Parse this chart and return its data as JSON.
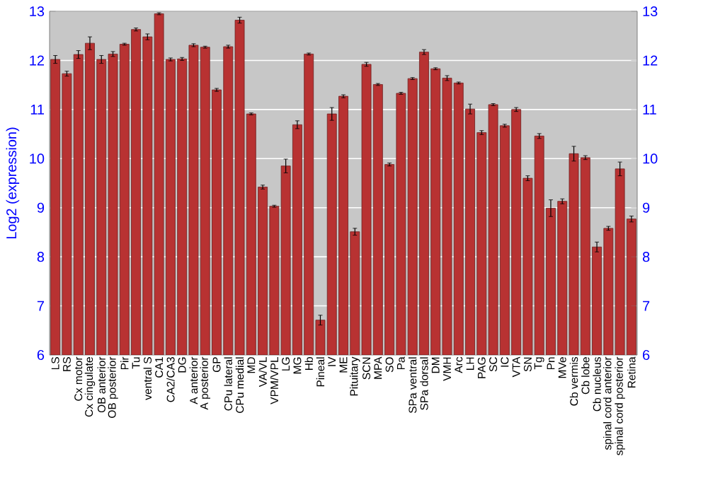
{
  "chart_data": {
    "type": "bar",
    "ylabel": "Log2 (expression)",
    "categories": [
      "LS",
      "RS",
      "Cx motor",
      "Cx cingulate",
      "OB anterior",
      "OB posterior",
      "Pir",
      "Tu",
      "ventral S",
      "CA1",
      "CA2/CA3",
      "DG",
      "A anterior",
      "A posterior",
      "GP",
      "CPu lateral",
      "CPu medial",
      "MD",
      "VA/VL",
      "VPM/VPL",
      "LG",
      "MG",
      "Hb",
      "Pineal",
      "IV",
      "ME",
      "Pituitary",
      "SCN",
      "MPA",
      "SO",
      "Pa",
      "SPa ventral",
      "SPa dorsal",
      "DM",
      "VMH",
      "Arc",
      "LH",
      "PAG",
      "SC",
      "IC",
      "VTA",
      "SN",
      "Tg",
      "Pn",
      "MVe",
      "Cb vermis",
      "Cb lobe",
      "Cb nucleus",
      "spinal cord anterior",
      "spinal cord posterior",
      "Retina"
    ],
    "series": [
      {
        "color": "#b83232",
        "values": [
          12.02,
          11.73,
          12.12,
          12.35,
          12.02,
          12.13,
          12.33,
          12.63,
          12.48,
          12.95,
          12.02,
          12.03,
          12.31,
          12.27,
          11.4,
          12.28,
          12.82,
          10.91,
          9.42,
          9.03,
          9.85,
          10.69,
          12.13,
          6.71,
          10.91,
          11.27,
          8.51,
          11.92,
          11.51,
          9.88,
          11.33,
          11.63,
          12.17,
          11.83,
          11.64,
          11.54,
          11.01,
          10.53,
          11.1,
          10.67,
          11.0,
          9.6,
          10.46,
          8.99,
          9.13,
          10.1,
          10.02,
          8.2,
          8.58,
          9.79,
          8.77
        ],
        "errors": [
          0.08,
          0.05,
          0.08,
          0.13,
          0.08,
          0.05,
          0.02,
          0.03,
          0.06,
          0.02,
          0.03,
          0.03,
          0.03,
          0.02,
          0.03,
          0.03,
          0.06,
          0.02,
          0.04,
          0.02,
          0.14,
          0.08,
          0.02,
          0.1,
          0.13,
          0.03,
          0.07,
          0.04,
          0.02,
          0.03,
          0.02,
          0.02,
          0.05,
          0.02,
          0.05,
          0.02,
          0.1,
          0.04,
          0.02,
          0.03,
          0.04,
          0.05,
          0.05,
          0.17,
          0.05,
          0.15,
          0.04,
          0.1,
          0.04,
          0.14,
          0.06
        ]
      }
    ],
    "ylim": [
      6,
      13
    ],
    "yticks": [
      6,
      7,
      8,
      9,
      10,
      11,
      12,
      13
    ],
    "y2lim": [
      6,
      13
    ],
    "y2ticks": [
      6,
      7,
      8,
      9,
      10,
      11,
      12,
      13
    ],
    "grid": "y"
  }
}
